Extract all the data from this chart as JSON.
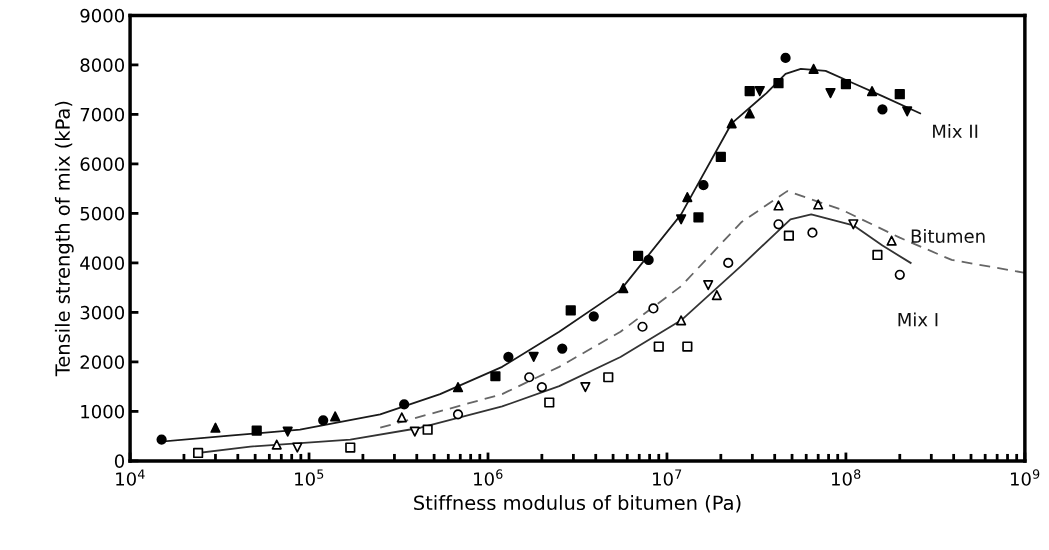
{
  "chart_data": {
    "type": "line",
    "xlabel": "Stiffness modulus of bitumen (Pa)",
    "ylabel": "Tensile strength of mix (kPa)",
    "log": "x",
    "xlim": [
      10000,
      1000000000
    ],
    "ylim": [
      0,
      9000
    ],
    "xticks": [
      {
        "value": 10000,
        "label": "10$^{4}$"
      },
      {
        "value": 100000,
        "label": "10$^{5}$"
      },
      {
        "value": 1000000,
        "label": "10$^{6}$"
      },
      {
        "value": 10000000,
        "label": "10$^{7}$"
      },
      {
        "value": 100000000,
        "label": "10$^{8}$"
      },
      {
        "value": 1000000000,
        "label": "10$^{9}$"
      }
    ],
    "yticks": [
      0,
      1000,
      2000,
      3000,
      4000,
      5000,
      6000,
      7000,
      8000,
      9000
    ],
    "grid": false,
    "legend": false,
    "series": [
      {
        "name": "Mix II",
        "color": "#1a1a1a",
        "line_style": "solid",
        "marker": "none",
        "x": [
          15000,
          36000,
          89000,
          250000,
          540000,
          1200000,
          2500000,
          5500000,
          12000000,
          23000000,
          36000000,
          46000000,
          56000000,
          77000000,
          110000000,
          160000000,
          260000000
        ],
        "values": [
          390,
          510,
          630,
          940,
          1350,
          1900,
          2610,
          3450,
          4980,
          6820,
          7430,
          7820,
          7920,
          7880,
          7630,
          7370,
          7020
        ]
      },
      {
        "name": "Bitumen",
        "color": "#666666",
        "line_style": "dashed",
        "marker": "none",
        "x": [
          250000,
          1200000,
          2500000,
          5500000,
          12000000,
          26000000,
          47000000,
          94000000,
          200000000,
          390000000,
          1000000000
        ],
        "values": [
          670,
          1350,
          1900,
          2610,
          3530,
          4820,
          5450,
          5080,
          4510,
          4060,
          3800
        ]
      },
      {
        "name": "Mix I",
        "color": "#333333",
        "line_style": "solid",
        "marker": "none",
        "x": [
          24000,
          47000,
          170000,
          420000,
          1200000,
          2500000,
          5500000,
          12000000,
          26000000,
          49000000,
          64000000,
          110000000,
          160000000,
          230000000
        ],
        "values": [
          160,
          290,
          430,
          670,
          1100,
          1510,
          2100,
          2840,
          3940,
          4880,
          4980,
          4760,
          4350,
          4000
        ]
      },
      {
        "type": "scatter",
        "marker": "circle",
        "color": "#000000",
        "x": [
          15000,
          120000,
          340000,
          1300000,
          2600000,
          3900000,
          7900000,
          16000000,
          46000000,
          160000000
        ],
        "values": [
          430,
          820,
          1140,
          2100,
          2270,
          2920,
          4060,
          5570,
          8140,
          7100
        ]
      },
      {
        "type": "scatter",
        "marker": "triangle",
        "color": "#000000",
        "x": [
          30000,
          140000,
          680000,
          5700000,
          13000000,
          23000000,
          29000000,
          66000000,
          140000000
        ],
        "values": [
          670,
          900,
          1490,
          3490,
          5330,
          6820,
          7020,
          7920,
          7470
        ]
      },
      {
        "type": "scatter",
        "marker": "square",
        "color": "#000000",
        "x": [
          51000,
          1100000,
          2900000,
          6900000,
          15000000,
          20000000,
          29000000,
          42000000,
          100000000,
          200000000
        ],
        "values": [
          610,
          1710,
          3040,
          4140,
          4920,
          6140,
          7470,
          7630,
          7610,
          7410
        ]
      },
      {
        "type": "scatter",
        "marker": "triangle_down",
        "color": "#000000",
        "x": [
          76000,
          1800000,
          12000000,
          33000000,
          82000000,
          220000000
        ],
        "values": [
          590,
          2100,
          4880,
          7470,
          7430,
          7060
        ]
      },
      {
        "type": "scatter",
        "marker": "square",
        "color": "#ffffff",
        "x": [
          24000,
          170000,
          460000,
          2200000,
          4700000,
          9000000,
          13000000,
          48000000,
          150000000
        ],
        "values": [
          160,
          270,
          630,
          1180,
          1690,
          2310,
          2310,
          4550,
          4160
        ]
      },
      {
        "type": "scatter",
        "marker": "triangle",
        "color": "#ffffff",
        "x": [
          66000,
          330000,
          12000000,
          19000000,
          42000000,
          70000000,
          180000000
        ],
        "values": [
          330,
          880,
          2840,
          3350,
          5160,
          5180,
          4450
        ]
      },
      {
        "type": "scatter",
        "marker": "triangle_down",
        "color": "#ffffff",
        "x": [
          86000,
          390000,
          3500000,
          17000000,
          110000000
        ],
        "values": [
          270,
          590,
          1490,
          3550,
          4780
        ]
      },
      {
        "type": "scatter",
        "marker": "circle",
        "color": "#ffffff",
        "x": [
          680000,
          1700000,
          2000000,
          7300000,
          8400000,
          22000000,
          42000000,
          65000000,
          200000000
        ],
        "values": [
          940,
          1690,
          1490,
          2710,
          3080,
          4000,
          4780,
          4610,
          3760
        ]
      }
    ]
  }
}
